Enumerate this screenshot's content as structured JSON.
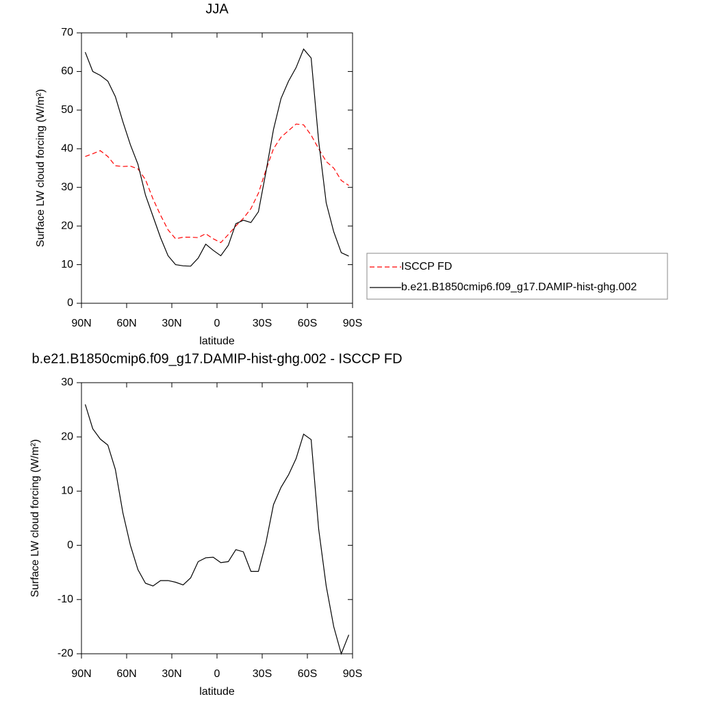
{
  "chart_data": [
    {
      "type": "line",
      "title": "JJA",
      "xlabel": "latitude",
      "ylabel": "Surface LW cloud forcing (W/m²)",
      "x": [
        87.5,
        82.5,
        77.5,
        72.5,
        67.5,
        62.5,
        57.5,
        52.5,
        47.5,
        42.5,
        37.5,
        32.5,
        27.5,
        22.5,
        17.5,
        12.5,
        7.5,
        2.5,
        -2.5,
        -7.5,
        -12.5,
        -17.5,
        -22.5,
        -27.5,
        -32.5,
        -37.5,
        -42.5,
        -47.5,
        -52.5,
        -57.5,
        -62.5,
        -67.5,
        -72.5,
        -77.5,
        -82.5,
        -87.5
      ],
      "series": [
        {
          "name": "ISCCP FD",
          "color": "#ff0000",
          "dash": true,
          "values": [
            38.0,
            38.7,
            39.5,
            38,
            35.6,
            35.4,
            35.5,
            34.8,
            32,
            27,
            22.8,
            19,
            16.7,
            17.1,
            17.1,
            17,
            18,
            16.7,
            15.7,
            17.8,
            20,
            22,
            24.5,
            28.5,
            34.5,
            40,
            43,
            44.7,
            46.4,
            46.2,
            43.5,
            40,
            36.7,
            35,
            31.8,
            30.5
          ]
        },
        {
          "name": "b.e21.B1850cmip6.f09_g17.DAMIP-hist-ghg.002",
          "color": "#000000",
          "dash": false,
          "values": [
            65.0,
            60.0,
            59.0,
            57.5,
            53.5,
            47,
            41,
            36,
            28,
            22.5,
            17,
            12.3,
            10.0,
            9.7,
            9.6,
            11.7,
            15.3,
            13.7,
            12.3,
            15,
            20.6,
            21.5,
            20.9,
            23.7,
            34,
            45,
            53,
            57.5,
            61,
            65.8,
            63.5,
            42,
            26,
            18.5,
            13.1,
            12.2
          ]
        }
      ],
      "xlim": [
        90,
        -90
      ],
      "xticks": [
        {
          "value": 90,
          "label": "90N"
        },
        {
          "value": 60,
          "label": "60N"
        },
        {
          "value": 30,
          "label": "30N"
        },
        0,
        {
          "value": -30,
          "label": "30S"
        },
        {
          "value": -60,
          "label": "60S"
        },
        {
          "value": -90,
          "label": "90S"
        }
      ],
      "ylim": [
        0,
        70
      ],
      "yticks": [
        0,
        10,
        20,
        30,
        40,
        50,
        60,
        70
      ],
      "legend": "right"
    },
    {
      "type": "line",
      "title": "b.e21.B1850cmip6.f09_g17.DAMIP-hist-ghg.002 - ISCCP FD",
      "xlabel": "latitude",
      "ylabel": "Surface LW cloud forcing (W/m²)",
      "x": [
        87.5,
        82.5,
        77.5,
        72.5,
        67.5,
        62.5,
        57.5,
        52.5,
        47.5,
        42.5,
        37.5,
        32.5,
        27.5,
        22.5,
        17.5,
        12.5,
        7.5,
        2.5,
        -2.5,
        -7.5,
        -12.5,
        -17.5,
        -22.5,
        -27.5,
        -32.5,
        -37.5,
        -42.5,
        -47.5,
        -52.5,
        -57.5,
        -62.5,
        -67.5,
        -72.5,
        -77.5,
        -82.5,
        -87.5
      ],
      "series": [
        {
          "color": "#000000",
          "dash": false,
          "values": [
            26,
            21.5,
            19.6,
            18.5,
            14,
            6,
            0,
            -4.5,
            -7,
            -7.5,
            -6.5,
            -6.5,
            -6.8,
            -7.3,
            -6,
            -3,
            -2.3,
            -2.2,
            -3.2,
            -3,
            -0.8,
            -1.2,
            -4.8,
            -4.8,
            0.5,
            7.5,
            10.7,
            13,
            16,
            20.5,
            19.5,
            3,
            -7.5,
            -15,
            -20,
            -16.5
          ]
        }
      ],
      "xlim": [
        90,
        -90
      ],
      "xticks": [
        {
          "value": 90,
          "label": "90N"
        },
        {
          "value": 60,
          "label": "60N"
        },
        {
          "value": 30,
          "label": "30N"
        },
        0,
        {
          "value": -30,
          "label": "30S"
        },
        {
          "value": -60,
          "label": "60S"
        },
        {
          "value": -90,
          "label": "90S"
        }
      ],
      "ylim": [
        -20,
        30
      ],
      "yticks": [
        -20,
        -10,
        0,
        10,
        20,
        30
      ]
    }
  ]
}
